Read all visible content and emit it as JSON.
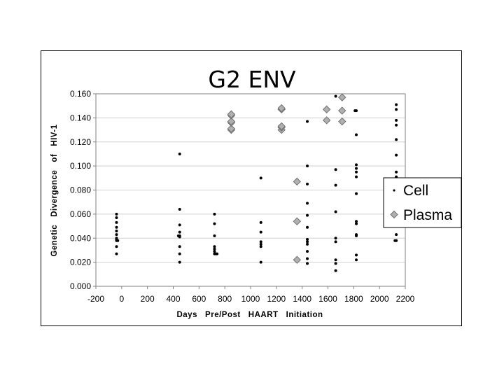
{
  "chart_data": {
    "type": "scatter",
    "title": "G2  ENV",
    "xlabel": "Days   Pre/Post   HAART   Initiation",
    "ylabel": "Genetic   Divergence   of   HIV-1",
    "xlim": [
      -200,
      2200
    ],
    "ylim": [
      0,
      0.16
    ],
    "x_ticks": [
      "-200",
      "0",
      "200",
      "400",
      "600",
      "800",
      "1000",
      "1200",
      "1400",
      "1600",
      "1800",
      "2000",
      "2200"
    ],
    "y_ticks": [
      "0.000",
      "0.020",
      "0.040",
      "0.060",
      "0.080",
      "0.100",
      "0.120",
      "0.140",
      "0.160"
    ],
    "grid": "horizontal",
    "legend_position": "right",
    "series": [
      {
        "name": "Cell",
        "marker": "dot",
        "color": "#000000",
        "points": [
          [
            -40,
            0.027
          ],
          [
            -40,
            0.033
          ],
          [
            -40,
            0.038
          ],
          [
            -40,
            0.039
          ],
          [
            -40,
            0.04
          ],
          [
            -40,
            0.043
          ],
          [
            -40,
            0.046
          ],
          [
            -40,
            0.049
          ],
          [
            -40,
            0.053
          ],
          [
            -40,
            0.057
          ],
          [
            -40,
            0.06
          ],
          [
            -30,
            0.038
          ],
          [
            450,
            0.02
          ],
          [
            450,
            0.027
          ],
          [
            450,
            0.033
          ],
          [
            450,
            0.041
          ],
          [
            450,
            0.042
          ],
          [
            450,
            0.045
          ],
          [
            450,
            0.051
          ],
          [
            450,
            0.064
          ],
          [
            450,
            0.11
          ],
          [
            440,
            0.042
          ],
          [
            720,
            0.027
          ],
          [
            730,
            0.027
          ],
          [
            740,
            0.027
          ],
          [
            720,
            0.029
          ],
          [
            720,
            0.031
          ],
          [
            720,
            0.033
          ],
          [
            720,
            0.042
          ],
          [
            720,
            0.052
          ],
          [
            720,
            0.06
          ],
          [
            1080,
            0.02
          ],
          [
            1080,
            0.033
          ],
          [
            1080,
            0.035
          ],
          [
            1080,
            0.037
          ],
          [
            1080,
            0.045
          ],
          [
            1080,
            0.053
          ],
          [
            1080,
            0.09
          ],
          [
            1440,
            0.019
          ],
          [
            1440,
            0.023
          ],
          [
            1440,
            0.029
          ],
          [
            1440,
            0.035
          ],
          [
            1440,
            0.037
          ],
          [
            1440,
            0.039
          ],
          [
            1440,
            0.049
          ],
          [
            1440,
            0.059
          ],
          [
            1440,
            0.069
          ],
          [
            1440,
            0.085
          ],
          [
            1440,
            0.1
          ],
          [
            1440,
            0.137
          ],
          [
            1660,
            0.013
          ],
          [
            1660,
            0.019
          ],
          [
            1660,
            0.022
          ],
          [
            1660,
            0.037
          ],
          [
            1660,
            0.04
          ],
          [
            1660,
            0.062
          ],
          [
            1660,
            0.084
          ],
          [
            1660,
            0.097
          ],
          [
            1660,
            0.158
          ],
          [
            1820,
            0.022
          ],
          [
            1820,
            0.026
          ],
          [
            1820,
            0.042
          ],
          [
            1820,
            0.043
          ],
          [
            1820,
            0.052
          ],
          [
            1820,
            0.054
          ],
          [
            1820,
            0.077
          ],
          [
            1820,
            0.091
          ],
          [
            1820,
            0.095
          ],
          [
            1820,
            0.098
          ],
          [
            1820,
            0.101
          ],
          [
            1820,
            0.126
          ],
          [
            1820,
            0.146
          ],
          [
            1810,
            0.146
          ],
          [
            2130,
            0.038
          ],
          [
            2130,
            0.043
          ],
          [
            2130,
            0.091
          ],
          [
            2130,
            0.095
          ],
          [
            2130,
            0.109
          ],
          [
            2130,
            0.122
          ],
          [
            2130,
            0.134
          ],
          [
            2130,
            0.138
          ],
          [
            2130,
            0.147
          ],
          [
            2130,
            0.151
          ],
          [
            2120,
            0.038
          ]
        ]
      },
      {
        "name": "Plasma",
        "marker": "diamond",
        "color": "#a8a8a8",
        "points": [
          [
            850,
            0.13
          ],
          [
            850,
            0.131
          ],
          [
            850,
            0.136
          ],
          [
            850,
            0.137
          ],
          [
            850,
            0.142
          ],
          [
            850,
            0.143
          ],
          [
            1240,
            0.13
          ],
          [
            1240,
            0.132
          ],
          [
            1240,
            0.133
          ],
          [
            1240,
            0.147
          ],
          [
            1240,
            0.148
          ],
          [
            1360,
            0.022
          ],
          [
            1360,
            0.054
          ],
          [
            1360,
            0.087
          ],
          [
            1590,
            0.138
          ],
          [
            1590,
            0.147
          ],
          [
            1710,
            0.137
          ],
          [
            1710,
            0.146
          ],
          [
            1710,
            0.157
          ]
        ]
      }
    ]
  }
}
